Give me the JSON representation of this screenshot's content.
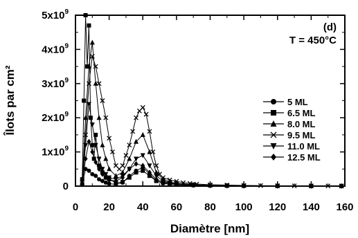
{
  "chart_data": {
    "type": "line",
    "xlabel": "Diamètre [nm]",
    "ylabel": "Îlots par cm²",
    "xlim": [
      0,
      160
    ],
    "ylim": [
      0,
      5000000000
    ],
    "x_ticks": [
      "0",
      "20",
      "40",
      "60",
      "80",
      "100",
      "120",
      "140",
      "160"
    ],
    "y_ticks": [
      {
        "value": 0,
        "base": "0",
        "exp": ""
      },
      {
        "value": 1000000000,
        "base": "1x10",
        "exp": "9"
      },
      {
        "value": 2000000000,
        "base": "2x10",
        "exp": "9"
      },
      {
        "value": 3000000000,
        "base": "3x10",
        "exp": "9"
      },
      {
        "value": 4000000000,
        "base": "4x10",
        "exp": "9"
      },
      {
        "value": 5000000000,
        "base": "5x10",
        "exp": "9"
      }
    ],
    "annotations": {
      "panel": "(d)",
      "condition": "T = 450°C"
    },
    "legend_position": "right",
    "series": [
      {
        "name": "5 ML",
        "marker": "circle",
        "x": [
          4,
          6,
          8,
          10,
          12,
          14,
          16,
          18,
          20,
          24,
          28,
          32,
          36,
          40,
          44,
          48,
          52,
          56,
          60,
          70,
          80,
          90,
          100,
          120,
          140,
          158
        ],
        "y": [
          50000000.0,
          500000000.0,
          450000000.0,
          350000000.0,
          300000000.0,
          200000000.0,
          150000000.0,
          100000000.0,
          70000000.0,
          50000000.0,
          100000000.0,
          300000000.0,
          450000000.0,
          550000000.0,
          350000000.0,
          150000000.0,
          80000000.0,
          50000000.0,
          40000000.0,
          20000000.0,
          10000000.0,
          10000000.0,
          5000000.0,
          5000000.0,
          3000000.0,
          2000000.0
        ]
      },
      {
        "name": "6.5 ML",
        "marker": "square",
        "x": [
          4,
          5,
          6,
          7,
          8,
          9,
          10,
          11,
          12,
          14,
          16,
          18,
          20,
          24,
          28,
          32,
          36,
          40,
          44,
          48,
          52,
          56,
          60,
          70,
          80,
          90,
          100,
          120,
          140,
          158
        ],
        "y": [
          200000000.0,
          2500000000.0,
          5000000000.0,
          3500000000.0,
          4700000000.0,
          2000000000.0,
          1200000000.0,
          800000000.0,
          1500000000.0,
          600000000.0,
          400000000.0,
          250000000.0,
          200000000.0,
          100000000.0,
          120000000.0,
          250000000.0,
          400000000.0,
          450000000.0,
          300000000.0,
          150000000.0,
          100000000.0,
          80000000.0,
          60000000.0,
          30000000.0,
          20000000.0,
          15000000.0,
          10000000.0,
          8000000.0,
          5000000.0,
          3000000.0
        ]
      },
      {
        "name": "8.0 ML",
        "marker": "triangle",
        "x": [
          4,
          6,
          8,
          10,
          12,
          14,
          16,
          18,
          20,
          24,
          28,
          32,
          36,
          40,
          44,
          48,
          52,
          56,
          60,
          70,
          80,
          90,
          100,
          120,
          140,
          158
        ],
        "y": [
          100000000.0,
          2000000000.0,
          3500000000.0,
          4200000000.0,
          3000000000.0,
          2000000000.0,
          1200000000.0,
          800000000.0,
          500000000.0,
          300000000.0,
          400000000.0,
          800000000.0,
          1300000000.0,
          1500000000.0,
          1000000000.0,
          400000000.0,
          200000000.0,
          120000000.0,
          80000000.0,
          40000000.0,
          20000000.0,
          15000000.0,
          10000000.0,
          8000000.0,
          5000000.0,
          3000000.0
        ]
      },
      {
        "name": "9.5 ML",
        "marker": "x",
        "x": [
          4,
          6,
          8,
          10,
          12,
          14,
          16,
          18,
          20,
          22,
          24,
          26,
          28,
          30,
          32,
          34,
          36,
          38,
          40,
          42,
          44,
          46,
          48,
          50,
          52,
          56,
          60,
          64,
          68,
          72,
          80,
          90,
          100,
          110,
          120,
          130,
          140,
          150,
          158
        ],
        "y": [
          100000000.0,
          1500000000.0,
          3000000000.0,
          3800000000.0,
          3500000000.0,
          3000000000.0,
          2500000000.0,
          2000000000.0,
          1400000000.0,
          1000000000.0,
          600000000.0,
          500000000.0,
          600000000.0,
          900000000.0,
          1200000000.0,
          1600000000.0,
          2000000000.0,
          2200000000.0,
          2300000000.0,
          2100000000.0,
          1600000000.0,
          1000000000.0,
          600000000.0,
          350000000.0,
          250000000.0,
          180000000.0,
          140000000.0,
          100000000.0,
          80000000.0,
          60000000.0,
          40000000.0,
          30000000.0,
          20000000.0,
          15000000.0,
          10000000.0,
          8000000.0,
          5000000.0,
          4000000.0,
          3000000.0
        ]
      },
      {
        "name": "11.0 ML",
        "marker": "triangle-down",
        "x": [
          4,
          6,
          8,
          10,
          12,
          14,
          16,
          18,
          20,
          24,
          28,
          32,
          36,
          40,
          44,
          48,
          52,
          56,
          60,
          70,
          80,
          90,
          100,
          120,
          140,
          158
        ],
        "y": [
          50000000.0,
          1200000000.0,
          2400000000.0,
          1800000000.0,
          1200000000.0,
          800000000.0,
          500000000.0,
          350000000.0,
          250000000.0,
          200000000.0,
          300000000.0,
          500000000.0,
          800000000.0,
          900000000.0,
          600000000.0,
          300000000.0,
          150000000.0,
          100000000.0,
          80000000.0,
          40000000.0,
          20000000.0,
          15000000.0,
          10000000.0,
          8000000.0,
          5000000.0,
          3000000.0
        ]
      },
      {
        "name": "12.5 ML",
        "marker": "diamond",
        "x": [
          4,
          6,
          8,
          10,
          12,
          14,
          16,
          18,
          20,
          24,
          28,
          32,
          36,
          40,
          44,
          48,
          52,
          56,
          60,
          70,
          80,
          90,
          100,
          120,
          140,
          158
        ],
        "y": [
          50000000.0,
          800000000.0,
          1300000000.0,
          1000000000.0,
          700000000.0,
          500000000.0,
          350000000.0,
          250000000.0,
          180000000.0,
          150000000.0,
          250000000.0,
          500000000.0,
          650000000.0,
          600000000.0,
          400000000.0,
          200000000.0,
          120000000.0,
          80000000.0,
          60000000.0,
          30000000.0,
          20000000.0,
          10000000.0,
          8000000.0,
          5000000.0,
          3000000.0,
          2000000.0
        ]
      }
    ]
  }
}
